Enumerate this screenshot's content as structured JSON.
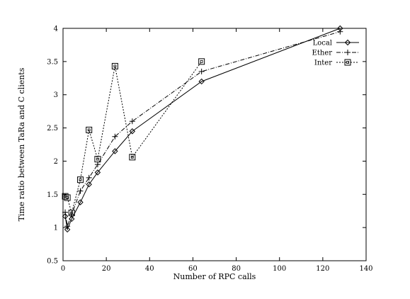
{
  "chart_data": {
    "type": "line",
    "title": "",
    "xlabel": "Number of RPC calls",
    "ylabel": "Time ratio between TaRa and C clients",
    "xlim": [
      0,
      140
    ],
    "ylim": [
      0.5,
      4
    ],
    "x_ticks": [
      "0",
      "20",
      "40",
      "60",
      "80",
      "100",
      "120",
      "140"
    ],
    "y_ticks": [
      "0.5",
      "1",
      "1.5",
      "2",
      "2.5",
      "3",
      "3.5",
      "4"
    ],
    "grid": false,
    "legend_position": "top-right",
    "series": [
      {
        "name": "Local",
        "marker": "diamond",
        "line_style": "solid",
        "x": [
          1,
          2,
          4,
          8,
          12,
          16,
          24,
          32,
          64,
          128
        ],
        "y": [
          1.17,
          0.97,
          1.13,
          1.38,
          1.65,
          1.83,
          2.15,
          2.45,
          3.2,
          4.0
        ]
      },
      {
        "name": "Ether",
        "marker": "plus",
        "line_style": "dash-dot",
        "x": [
          1,
          2,
          4,
          8,
          12,
          16,
          24,
          32,
          64,
          128
        ],
        "y": [
          1.23,
          1.02,
          1.2,
          1.55,
          1.75,
          1.95,
          2.37,
          2.6,
          3.35,
          3.95
        ]
      },
      {
        "name": "Inter",
        "marker": "square",
        "line_style": "dotted",
        "x": [
          1,
          2,
          4,
          8,
          12,
          16,
          24,
          32,
          64
        ],
        "y": [
          1.47,
          1.45,
          1.22,
          1.72,
          2.47,
          2.03,
          3.43,
          2.06,
          3.5
        ]
      }
    ]
  }
}
